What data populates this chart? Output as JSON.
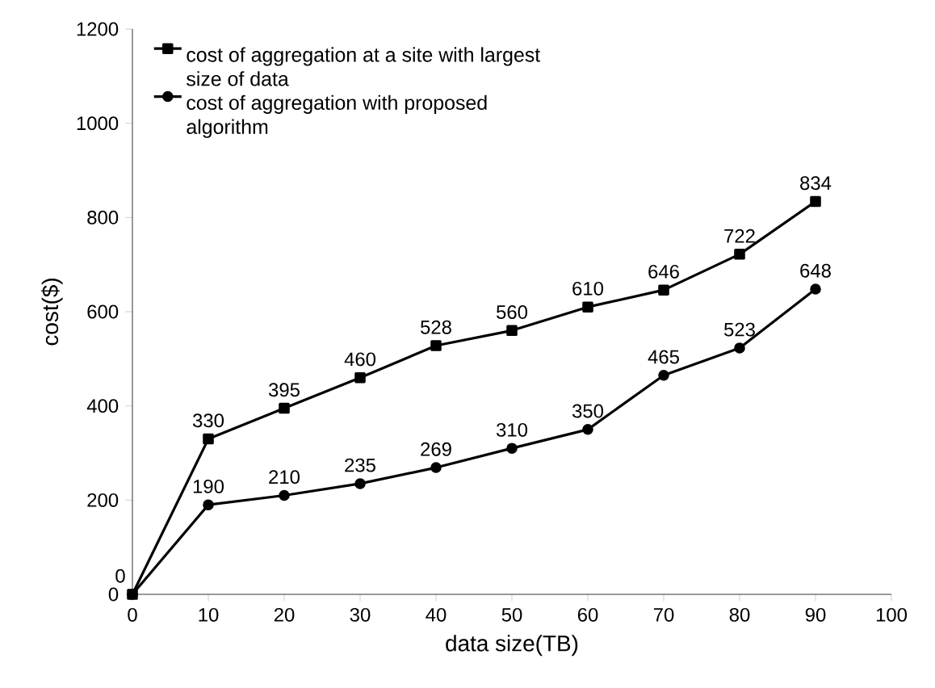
{
  "chart_data": {
    "type": "line",
    "xlabel": "data size(TB)",
    "ylabel": "cost($)",
    "x": [
      0,
      10,
      20,
      30,
      40,
      50,
      60,
      70,
      80,
      90
    ],
    "series": [
      {
        "name": "cost of aggregation at a site with largest size of data",
        "color": "#000000",
        "marker": "square",
        "values": [
          0,
          330,
          395,
          460,
          528,
          560,
          610,
          646,
          722,
          834
        ]
      },
      {
        "name": "cost of aggregation with proposed algorithm",
        "color": "#000000",
        "marker": "circle",
        "values": [
          0,
          190,
          210,
          235,
          269,
          310,
          350,
          465,
          523,
          648
        ],
        "value_labels": [
          null,
          "190",
          "210",
          "235",
          "269",
          "310",
          "350",
          "465",
          "523",
          "648"
        ]
      }
    ],
    "xlim": [
      0,
      100
    ],
    "xticks": [
      0,
      10,
      20,
      30,
      40,
      50,
      60,
      70,
      80,
      90,
      100
    ],
    "ylim": [
      0,
      1200
    ],
    "yticks": [
      0,
      200,
      400,
      600,
      800,
      1000,
      1200
    ],
    "data_labels": true,
    "legend": "top left",
    "grid": false,
    "line_style": "solid"
  }
}
